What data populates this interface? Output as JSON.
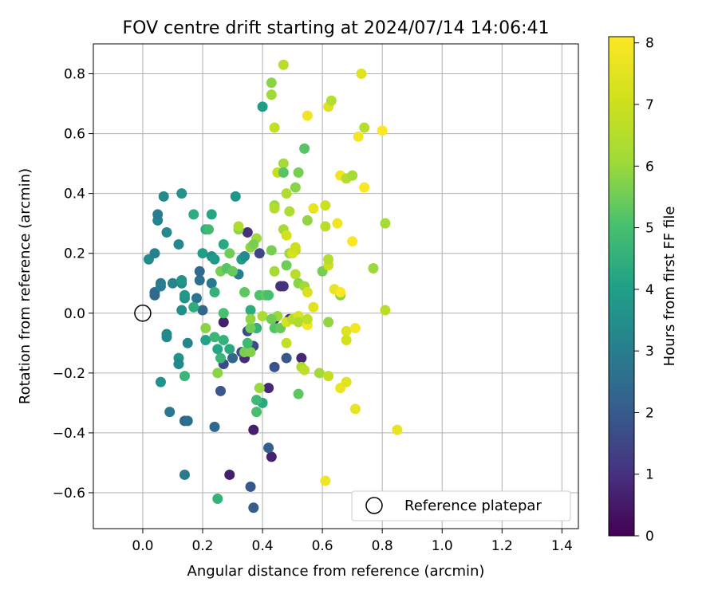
{
  "chart_data": {
    "type": "scatter",
    "title": "FOV centre drift starting at 2024/07/14 14:06:41",
    "xlabel": "Angular distance from reference (arcmin)",
    "ylabel": "Rotation from reference (arcmin)",
    "xlim": [
      -0.165,
      1.455
    ],
    "ylim": [
      -0.72,
      0.9
    ],
    "xticks": [
      0.0,
      0.2,
      0.4,
      0.6,
      0.8,
      1.0,
      1.2,
      1.4
    ],
    "xtick_labels": [
      "0.0",
      "0.2",
      "0.4",
      "0.6",
      "0.8",
      "1.0",
      "1.2",
      "1.4"
    ],
    "yticks": [
      -0.6,
      -0.4,
      -0.2,
      0.0,
      0.2,
      0.4,
      0.6,
      0.8
    ],
    "ytick_labels": [
      "−0.6",
      "−0.4",
      "−0.2",
      "0.0",
      "0.2",
      "0.4",
      "0.6",
      "0.8"
    ],
    "grid": true,
    "colormap": "viridis",
    "colorbar": {
      "label": "Hours from first FF file",
      "range": [
        0,
        8.1
      ],
      "ticks": [
        0,
        1,
        2,
        3,
        4,
        5,
        6,
        7,
        8
      ],
      "tick_labels": [
        "0",
        "1",
        "2",
        "3",
        "4",
        "5",
        "6",
        "7",
        "8"
      ]
    },
    "reference_marker": {
      "name": "Reference platepar",
      "x": 0.0,
      "y": 0.0
    },
    "legend": {
      "position": "lower right",
      "entries": [
        "Reference platepar"
      ]
    },
    "points": [
      {
        "x": 0.29,
        "y": -0.54,
        "c": 0.6
      },
      {
        "x": 0.37,
        "y": -0.39,
        "c": 0.6
      },
      {
        "x": 0.43,
        "y": -0.48,
        "c": 0.7
      },
      {
        "x": 0.42,
        "y": -0.25,
        "c": 0.8
      },
      {
        "x": 0.27,
        "y": -0.03,
        "c": 0.6
      },
      {
        "x": 0.34,
        "y": -0.15,
        "c": 0.9
      },
      {
        "x": 0.53,
        "y": -0.15,
        "c": 0.8
      },
      {
        "x": 0.49,
        "y": -0.02,
        "c": 0.7
      },
      {
        "x": 0.47,
        "y": 0.09,
        "c": 1.1
      },
      {
        "x": 0.35,
        "y": 0.27,
        "c": 1.0
      },
      {
        "x": 0.44,
        "y": -0.02,
        "c": 0.7
      },
      {
        "x": 0.37,
        "y": -0.11,
        "c": 1.6
      },
      {
        "x": 0.36,
        "y": -0.58,
        "c": 1.9
      },
      {
        "x": 0.37,
        "y": -0.65,
        "c": 2.0
      },
      {
        "x": 0.42,
        "y": -0.45,
        "c": 2.1
      },
      {
        "x": 0.44,
        "y": -0.18,
        "c": 1.8
      },
      {
        "x": 0.48,
        "y": -0.15,
        "c": 1.9
      },
      {
        "x": 0.33,
        "y": -0.13,
        "c": 1.7
      },
      {
        "x": 0.26,
        "y": -0.26,
        "c": 1.9
      },
      {
        "x": 0.24,
        "y": -0.38,
        "c": 2.4
      },
      {
        "x": 0.27,
        "y": -0.17,
        "c": 1.6
      },
      {
        "x": 0.39,
        "y": 0.2,
        "c": 1.5
      },
      {
        "x": 0.35,
        "y": -0.06,
        "c": 1.6
      },
      {
        "x": 0.3,
        "y": -0.15,
        "c": 2.3
      },
      {
        "x": 0.14,
        "y": -0.36,
        "c": 2.3
      },
      {
        "x": 0.14,
        "y": -0.54,
        "c": 2.9
      },
      {
        "x": 0.15,
        "y": -0.36,
        "c": 2.6
      },
      {
        "x": 0.09,
        "y": -0.33,
        "c": 2.8
      },
      {
        "x": 0.06,
        "y": -0.23,
        "c": 3.6
      },
      {
        "x": 0.12,
        "y": -0.15,
        "c": 3.6
      },
      {
        "x": 0.12,
        "y": -0.17,
        "c": 3.3
      },
      {
        "x": 0.08,
        "y": -0.07,
        "c": 3.4
      },
      {
        "x": 0.08,
        "y": -0.08,
        "c": 3.3
      },
      {
        "x": 0.15,
        "y": -0.1,
        "c": 3.2
      },
      {
        "x": 0.14,
        "y": 0.05,
        "c": 3.6
      },
      {
        "x": 0.14,
        "y": 0.06,
        "c": 3.8
      },
      {
        "x": 0.13,
        "y": 0.01,
        "c": 3.5
      },
      {
        "x": 0.18,
        "y": 0.05,
        "c": 2.7
      },
      {
        "x": 0.19,
        "y": 0.11,
        "c": 2.6
      },
      {
        "x": 0.19,
        "y": 0.14,
        "c": 2.4
      },
      {
        "x": 0.2,
        "y": 0.01,
        "c": 2.3
      },
      {
        "x": 0.23,
        "y": 0.1,
        "c": 2.9
      },
      {
        "x": 0.04,
        "y": 0.07,
        "c": 2.6
      },
      {
        "x": 0.04,
        "y": 0.06,
        "c": 2.4
      },
      {
        "x": 0.06,
        "y": 0.1,
        "c": 2.9
      },
      {
        "x": 0.06,
        "y": 0.09,
        "c": 3.0
      },
      {
        "x": 0.1,
        "y": 0.1,
        "c": 3.2
      },
      {
        "x": 0.13,
        "y": 0.1,
        "c": 3.3
      },
      {
        "x": 0.13,
        "y": 0.11,
        "c": 3.7
      },
      {
        "x": 0.02,
        "y": 0.18,
        "c": 3.4
      },
      {
        "x": 0.04,
        "y": 0.2,
        "c": 3.1
      },
      {
        "x": 0.08,
        "y": 0.27,
        "c": 3.3
      },
      {
        "x": 0.05,
        "y": 0.31,
        "c": 3.2
      },
      {
        "x": 0.05,
        "y": 0.33,
        "c": 3.0
      },
      {
        "x": 0.07,
        "y": 0.39,
        "c": 3.4
      },
      {
        "x": 0.13,
        "y": 0.4,
        "c": 3.6
      },
      {
        "x": 0.12,
        "y": 0.23,
        "c": 3.3
      },
      {
        "x": 0.17,
        "y": 0.33,
        "c": 4.4
      },
      {
        "x": 0.21,
        "y": 0.28,
        "c": 4.5
      },
      {
        "x": 0.22,
        "y": 0.28,
        "c": 4.8
      },
      {
        "x": 0.23,
        "y": 0.33,
        "c": 4.2
      },
      {
        "x": 0.2,
        "y": 0.2,
        "c": 4.0
      },
      {
        "x": 0.23,
        "y": 0.19,
        "c": 3.5
      },
      {
        "x": 0.24,
        "y": 0.18,
        "c": 3.8
      },
      {
        "x": 0.27,
        "y": 0.23,
        "c": 4.3
      },
      {
        "x": 0.31,
        "y": 0.39,
        "c": 3.7
      },
      {
        "x": 0.32,
        "y": 0.28,
        "c": 5.8
      },
      {
        "x": 0.32,
        "y": 0.13,
        "c": 3.0
      },
      {
        "x": 0.33,
        "y": 0.18,
        "c": 4.0
      },
      {
        "x": 0.34,
        "y": 0.19,
        "c": 3.4
      },
      {
        "x": 0.26,
        "y": 0.14,
        "c": 5.6
      },
      {
        "x": 0.28,
        "y": 0.15,
        "c": 5.2
      },
      {
        "x": 0.3,
        "y": 0.14,
        "c": 5.4
      },
      {
        "x": 0.36,
        "y": 0.22,
        "c": 5.9
      },
      {
        "x": 0.38,
        "y": 0.25,
        "c": 6.1
      },
      {
        "x": 0.37,
        "y": 0.23,
        "c": 5.6
      },
      {
        "x": 0.17,
        "y": 0.02,
        "c": 4.4
      },
      {
        "x": 0.24,
        "y": 0.07,
        "c": 4.6
      },
      {
        "x": 0.27,
        "y": 0.0,
        "c": 5.0
      },
      {
        "x": 0.34,
        "y": 0.07,
        "c": 5.3
      },
      {
        "x": 0.39,
        "y": 0.06,
        "c": 5.1
      },
      {
        "x": 0.41,
        "y": 0.06,
        "c": 5.3
      },
      {
        "x": 0.36,
        "y": 0.01,
        "c": 4.4
      },
      {
        "x": 0.21,
        "y": -0.05,
        "c": 5.8
      },
      {
        "x": 0.21,
        "y": -0.09,
        "c": 4.1
      },
      {
        "x": 0.24,
        "y": -0.08,
        "c": 4.7
      },
      {
        "x": 0.25,
        "y": -0.12,
        "c": 4.2
      },
      {
        "x": 0.27,
        "y": -0.09,
        "c": 4.6
      },
      {
        "x": 0.29,
        "y": -0.12,
        "c": 4.3
      },
      {
        "x": 0.26,
        "y": -0.15,
        "c": 4.7
      },
      {
        "x": 0.25,
        "y": -0.2,
        "c": 5.8
      },
      {
        "x": 0.34,
        "y": -0.13,
        "c": 5.6
      },
      {
        "x": 0.36,
        "y": -0.13,
        "c": 5.7
      },
      {
        "x": 0.38,
        "y": -0.05,
        "c": 4.3
      },
      {
        "x": 0.38,
        "y": -0.05,
        "c": 4.6
      },
      {
        "x": 0.36,
        "y": -0.05,
        "c": 5.5
      },
      {
        "x": 0.36,
        "y": -0.02,
        "c": 5.9
      },
      {
        "x": 0.4,
        "y": -0.01,
        "c": 6.3
      },
      {
        "x": 0.4,
        "y": -0.3,
        "c": 4.3
      },
      {
        "x": 0.38,
        "y": -0.29,
        "c": 4.8
      },
      {
        "x": 0.38,
        "y": -0.33,
        "c": 5.0
      },
      {
        "x": 0.39,
        "y": -0.25,
        "c": 6.0
      },
      {
        "x": 0.14,
        "y": -0.21,
        "c": 4.7
      },
      {
        "x": 0.25,
        "y": -0.62,
        "c": 4.6
      },
      {
        "x": 0.4,
        "y": 0.69,
        "c": 4.0
      },
      {
        "x": 0.43,
        "y": 0.73,
        "c": 6.1
      },
      {
        "x": 0.43,
        "y": 0.77,
        "c": 5.8
      },
      {
        "x": 0.47,
        "y": 0.83,
        "c": 6.6
      },
      {
        "x": 0.44,
        "y": 0.62,
        "c": 6.8
      },
      {
        "x": 0.47,
        "y": 0.5,
        "c": 6.2
      },
      {
        "x": 0.45,
        "y": 0.47,
        "c": 6.8
      },
      {
        "x": 0.47,
        "y": 0.47,
        "c": 5.2
      },
      {
        "x": 0.48,
        "y": 0.4,
        "c": 6.4
      },
      {
        "x": 0.51,
        "y": 0.42,
        "c": 5.8
      },
      {
        "x": 0.52,
        "y": 0.47,
        "c": 5.6
      },
      {
        "x": 0.54,
        "y": 0.55,
        "c": 5.2
      },
      {
        "x": 0.55,
        "y": 0.66,
        "c": 7.8
      },
      {
        "x": 0.44,
        "y": 0.36,
        "c": 6.0
      },
      {
        "x": 0.44,
        "y": 0.35,
        "c": 6.5
      },
      {
        "x": 0.49,
        "y": 0.34,
        "c": 6.4
      },
      {
        "x": 0.47,
        "y": 0.28,
        "c": 6.2
      },
      {
        "x": 0.48,
        "y": 0.26,
        "c": 7.1
      },
      {
        "x": 0.49,
        "y": 0.2,
        "c": 6.0
      },
      {
        "x": 0.51,
        "y": 0.21,
        "c": 6.5
      },
      {
        "x": 0.5,
        "y": 0.2,
        "c": 7.2
      },
      {
        "x": 0.51,
        "y": 0.22,
        "c": 7.0
      },
      {
        "x": 0.48,
        "y": 0.16,
        "c": 5.5
      },
      {
        "x": 0.51,
        "y": 0.13,
        "c": 6.6
      },
      {
        "x": 0.52,
        "y": 0.1,
        "c": 5.8
      },
      {
        "x": 0.54,
        "y": 0.09,
        "c": 6.1
      },
      {
        "x": 0.55,
        "y": 0.31,
        "c": 5.9
      },
      {
        "x": 0.43,
        "y": 0.21,
        "c": 5.6
      },
      {
        "x": 0.44,
        "y": 0.14,
        "c": 6.2
      },
      {
        "x": 0.46,
        "y": 0.09,
        "c": 1.0
      },
      {
        "x": 0.45,
        "y": -0.01,
        "c": 6.0
      },
      {
        "x": 0.43,
        "y": -0.02,
        "c": 5.5
      },
      {
        "x": 0.44,
        "y": -0.05,
        "c": 5.2
      },
      {
        "x": 0.46,
        "y": -0.05,
        "c": 5.4
      },
      {
        "x": 0.48,
        "y": -0.1,
        "c": 6.8
      },
      {
        "x": 0.48,
        "y": -0.03,
        "c": 7.2
      },
      {
        "x": 0.5,
        "y": -0.02,
        "c": 6.5
      },
      {
        "x": 0.52,
        "y": -0.01,
        "c": 7.3
      },
      {
        "x": 0.52,
        "y": -0.03,
        "c": 6.4
      },
      {
        "x": 0.55,
        "y": -0.04,
        "c": 7.9
      },
      {
        "x": 0.55,
        "y": -0.02,
        "c": 6.7
      },
      {
        "x": 0.57,
        "y": 0.02,
        "c": 7.5
      },
      {
        "x": 0.55,
        "y": 0.07,
        "c": 7.3
      },
      {
        "x": 0.53,
        "y": -0.18,
        "c": 6.3
      },
      {
        "x": 0.54,
        "y": -0.19,
        "c": 6.7
      },
      {
        "x": 0.52,
        "y": -0.27,
        "c": 5.3
      },
      {
        "x": 0.59,
        "y": -0.2,
        "c": 6.1
      },
      {
        "x": 0.62,
        "y": -0.21,
        "c": 6.8
      },
      {
        "x": 0.62,
        "y": -0.03,
        "c": 5.9
      },
      {
        "x": 0.57,
        "y": 0.35,
        "c": 7.6
      },
      {
        "x": 0.6,
        "y": 0.14,
        "c": 5.6
      },
      {
        "x": 0.61,
        "y": 0.29,
        "c": 6.6
      },
      {
        "x": 0.61,
        "y": 0.36,
        "c": 7.0
      },
      {
        "x": 0.62,
        "y": 0.16,
        "c": 7.0
      },
      {
        "x": 0.62,
        "y": 0.18,
        "c": 6.5
      },
      {
        "x": 0.62,
        "y": 0.69,
        "c": 7.4
      },
      {
        "x": 0.63,
        "y": 0.71,
        "c": 6.5
      },
      {
        "x": 0.64,
        "y": 0.08,
        "c": 7.6
      },
      {
        "x": 0.65,
        "y": 0.3,
        "c": 7.8
      },
      {
        "x": 0.66,
        "y": 0.06,
        "c": 5.8
      },
      {
        "x": 0.66,
        "y": 0.07,
        "c": 8.0
      },
      {
        "x": 0.66,
        "y": 0.46,
        "c": 7.8
      },
      {
        "x": 0.68,
        "y": 0.45,
        "c": 6.5
      },
      {
        "x": 0.7,
        "y": 0.46,
        "c": 6.2
      },
      {
        "x": 0.68,
        "y": -0.06,
        "c": 7.4
      },
      {
        "x": 0.68,
        "y": -0.09,
        "c": 7.1
      },
      {
        "x": 0.66,
        "y": -0.25,
        "c": 7.7
      },
      {
        "x": 0.68,
        "y": -0.23,
        "c": 7.5
      },
      {
        "x": 0.71,
        "y": -0.05,
        "c": 7.9
      },
      {
        "x": 0.71,
        "y": -0.32,
        "c": 7.6
      },
      {
        "x": 0.61,
        "y": -0.56,
        "c": 7.8
      },
      {
        "x": 0.7,
        "y": 0.24,
        "c": 8.0
      },
      {
        "x": 0.72,
        "y": 0.59,
        "c": 7.9
      },
      {
        "x": 0.73,
        "y": 0.8,
        "c": 7.4
      },
      {
        "x": 0.74,
        "y": 0.62,
        "c": 6.5
      },
      {
        "x": 0.74,
        "y": 0.42,
        "c": 8.0
      },
      {
        "x": 0.77,
        "y": 0.15,
        "c": 6.0
      },
      {
        "x": 0.8,
        "y": 0.61,
        "c": 8.1
      },
      {
        "x": 0.81,
        "y": 0.3,
        "c": 6.2
      },
      {
        "x": 0.81,
        "y": 0.01,
        "c": 6.6
      },
      {
        "x": 0.85,
        "y": -0.39,
        "c": 7.6
      },
      {
        "x": 0.29,
        "y": 0.2,
        "c": 5.5
      },
      {
        "x": 0.32,
        "y": 0.29,
        "c": 6.4
      },
      {
        "x": 0.42,
        "y": 0.06,
        "c": 5.0
      },
      {
        "x": 0.35,
        "y": -0.1,
        "c": 4.8
      }
    ]
  }
}
